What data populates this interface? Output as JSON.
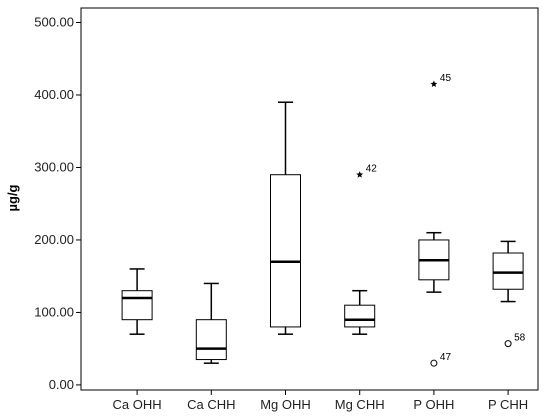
{
  "chart_data": {
    "type": "boxplot",
    "title": "",
    "xlabel": "",
    "ylabel": "µg/g",
    "ylim": [
      -7,
      520
    ],
    "yticks": [
      0,
      100,
      200,
      300,
      400,
      500
    ],
    "ytick_labels": [
      "0.00",
      "100.00",
      "200.00",
      "300.00",
      "400.00",
      "500.00"
    ],
    "grid": false,
    "categories": [
      "Ca OHH",
      "Ca CHH",
      "Mg OHH",
      "Mg CHH",
      "P OHH",
      "P CHH"
    ],
    "boxes": [
      {
        "category": "Ca OHH",
        "whisker_low": 70,
        "q1": 90,
        "median": 120,
        "q3": 130,
        "whisker_high": 160,
        "outliers": []
      },
      {
        "category": "Ca CHH",
        "whisker_low": 30,
        "q1": 35,
        "median": 50,
        "q3": 90,
        "whisker_high": 140,
        "outliers": []
      },
      {
        "category": "Mg OHH",
        "whisker_low": 70,
        "q1": 80,
        "median": 170,
        "q3": 290,
        "whisker_high": 390,
        "outliers": []
      },
      {
        "category": "Mg CHH",
        "whisker_low": 70,
        "q1": 80,
        "median": 90,
        "q3": 110,
        "whisker_high": 130,
        "outliers": [
          {
            "value": 290,
            "label": "42",
            "marker": "star"
          }
        ]
      },
      {
        "category": "P OHH",
        "whisker_low": 128,
        "q1": 145,
        "median": 172,
        "q3": 200,
        "whisker_high": 210,
        "outliers": [
          {
            "value": 415,
            "label": "45",
            "marker": "star"
          },
          {
            "value": 30,
            "label": "47",
            "marker": "circle"
          }
        ]
      },
      {
        "category": "P CHH",
        "whisker_low": 115,
        "q1": 132,
        "median": 155,
        "q3": 182,
        "whisker_high": 198,
        "outliers": [
          {
            "value": 57,
            "label": "58",
            "marker": "circle"
          }
        ]
      }
    ]
  }
}
